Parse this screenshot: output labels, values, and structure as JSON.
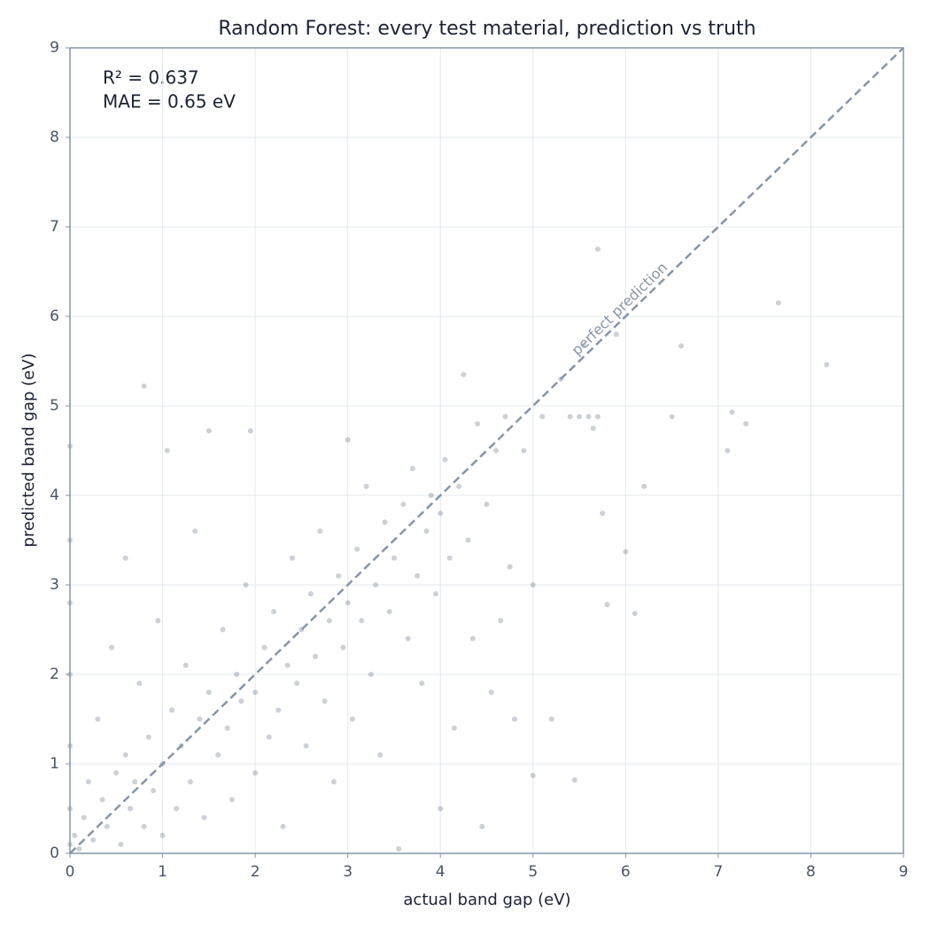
{
  "chart_data": {
    "type": "scatter",
    "title": "Random Forest: every test material, prediction vs truth",
    "xlabel": "actual band gap (eV)",
    "ylabel": "predicted band gap (eV)",
    "annotations": [
      "R² = 0.637",
      "MAE = 0.65 eV"
    ],
    "color": "#344863",
    "alpha": 0.25,
    "grid": true,
    "xlim": [
      0,
      9
    ],
    "ylim": [
      0,
      9
    ],
    "xticks": [
      0,
      1,
      2,
      3,
      4,
      5,
      6,
      7,
      8,
      9
    ],
    "yticks": [
      0,
      1,
      2,
      3,
      4,
      5,
      6,
      7,
      8,
      9
    ],
    "reference_line": {
      "label": "perfect prediction",
      "x": [
        0,
        9
      ],
      "y": [
        0,
        9
      ],
      "color": "#8795a8"
    },
    "x": [
      0,
      0,
      0,
      0,
      0,
      0,
      0,
      0.05,
      0.1,
      0.15,
      0.2,
      0.25,
      0.3,
      0.35,
      0.4,
      0.45,
      0.5,
      0.55,
      0.6,
      0.6,
      0.65,
      0.7,
      0.75,
      0.8,
      0.8,
      0.85,
      0.9,
      0.95,
      1.0,
      1.0,
      1.05,
      1.1,
      1.15,
      1.2,
      1.25,
      1.3,
      1.35,
      1.4,
      1.45,
      1.5,
      1.5,
      1.6,
      1.65,
      1.7,
      1.75,
      1.8,
      1.85,
      1.9,
      1.95,
      2.0,
      2.0,
      2.1,
      2.15,
      2.2,
      2.25,
      2.3,
      2.35,
      2.4,
      2.45,
      2.5,
      2.55,
      2.6,
      2.65,
      2.7,
      2.75,
      2.8,
      2.85,
      2.9,
      2.95,
      3.0,
      3.0,
      3.05,
      3.1,
      3.15,
      3.2,
      3.25,
      3.3,
      3.35,
      3.4,
      3.45,
      3.5,
      3.55,
      3.6,
      3.65,
      3.7,
      3.75,
      3.8,
      3.85,
      3.9,
      3.95,
      4.0,
      4.0,
      4.05,
      4.1,
      4.15,
      4.2,
      4.25,
      4.3,
      4.35,
      4.4,
      4.45,
      4.5,
      4.55,
      4.6,
      4.65,
      4.7,
      4.75,
      4.8,
      4.9,
      5.0,
      5.0,
      5.1,
      5.2,
      5.3,
      5.4,
      5.45,
      5.5,
      5.55,
      5.6,
      5.65,
      5.7,
      5.7,
      5.75,
      5.8,
      5.9,
      6.0,
      6.1,
      6.2,
      6.5,
      6.6,
      7.1,
      7.15,
      7.3,
      7.65,
      8.17
    ],
    "y": [
      0.1,
      0.5,
      1.2,
      2.0,
      2.8,
      3.5,
      4.55,
      0.2,
      0.05,
      0.4,
      0.8,
      0.15,
      1.5,
      0.6,
      0.3,
      2.3,
      0.9,
      0.1,
      1.1,
      3.3,
      0.5,
      0.8,
      1.9,
      5.22,
      0.3,
      1.3,
      0.7,
      2.6,
      1.0,
      0.2,
      4.5,
      1.6,
      0.5,
      1.2,
      2.1,
      0.8,
      3.6,
      1.5,
      0.4,
      4.72,
      1.8,
      1.1,
      2.5,
      1.4,
      0.6,
      2.0,
      1.7,
      3.0,
      4.72,
      1.8,
      0.9,
      2.3,
      1.3,
      2.7,
      1.6,
      0.3,
      2.1,
      3.3,
      1.9,
      2.5,
      1.2,
      2.9,
      2.2,
      3.6,
      1.7,
      2.6,
      0.8,
      3.1,
      2.3,
      2.8,
      4.62,
      1.5,
      3.4,
      2.6,
      4.1,
      2.0,
      3.0,
      1.1,
      3.7,
      2.7,
      3.3,
      0.05,
      3.9,
      2.4,
      4.3,
      3.1,
      1.9,
      3.6,
      4.0,
      2.9,
      3.8,
      0.5,
      4.4,
      3.3,
      1.4,
      4.1,
      5.35,
      3.5,
      2.4,
      4.8,
      0.3,
      3.9,
      1.8,
      4.5,
      2.6,
      4.88,
      3.2,
      1.5,
      4.5,
      0.87,
      3.0,
      4.88,
      1.5,
      5.3,
      4.88,
      0.82,
      4.88,
      5.68,
      4.88,
      4.75,
      6.75,
      4.88,
      3.8,
      2.78,
      5.8,
      3.37,
      2.68,
      4.1,
      4.88,
      5.67,
      4.5,
      4.93,
      4.8,
      6.15,
      5.46
    ]
  }
}
